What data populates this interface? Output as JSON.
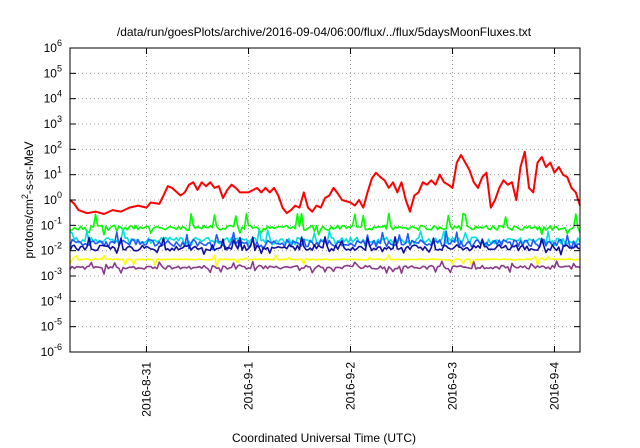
{
  "chart_data": {
    "type": "line",
    "title": "/data/run/goesPlots/archive/2016-09-04/06:00/flux/../flux/5daysMoonFluxes.txt",
    "xlabel": "Coordinated Universal Time (UTC)",
    "ylabel": {
      "prefix": "protons/cm",
      "superscript": "2",
      "suffix": "-s-sr-MeV"
    },
    "yscale": "log",
    "ylim_exp": [
      -6,
      6
    ],
    "y_tick_base": "10",
    "y_tick_exponents": [
      "-6",
      "-5",
      "-4",
      "-3",
      "-2",
      "-1",
      "0",
      "1",
      "2",
      "3",
      "4",
      "5",
      "6"
    ],
    "xlim": [
      "2016-08-30 06:00",
      "2016-09-04 06:00"
    ],
    "x_ticks": [
      {
        "t": "2016-08-31 00:00",
        "label": "2016-8-31"
      },
      {
        "t": "2016-09-01 00:00",
        "label": "2016-9-1"
      },
      {
        "t": "2016-09-02 00:00",
        "label": "2016-9-2"
      },
      {
        "t": "2016-09-03 00:00",
        "label": "2016-9-3"
      },
      {
        "t": "2016-09-04 00:00",
        "label": "2016-9-4"
      }
    ],
    "grid": true,
    "legend": "none",
    "series": [
      {
        "color": "#ff0000",
        "points": [
          [
            "2016-08-30 06:00",
            1.0
          ],
          [
            "2016-08-30 07:00",
            0.7
          ],
          [
            "2016-08-30 08:00",
            0.4
          ],
          [
            "2016-08-30 10:00",
            0.3
          ],
          [
            "2016-08-30 12:00",
            0.35
          ],
          [
            "2016-08-30 14:00",
            0.28
          ],
          [
            "2016-08-30 16:00",
            0.4
          ],
          [
            "2016-08-30 18:00",
            0.35
          ],
          [
            "2016-08-30 20:00",
            0.5
          ],
          [
            "2016-08-30 22:00",
            0.6
          ],
          [
            "2016-08-31 00:00",
            0.5
          ],
          [
            "2016-08-31 01:00",
            0.8
          ],
          [
            "2016-08-31 03:00",
            0.7
          ],
          [
            "2016-08-31 04:00",
            1.5
          ],
          [
            "2016-08-31 05:00",
            3.5
          ],
          [
            "2016-08-31 06:00",
            3.0
          ],
          [
            "2016-08-31 08:00",
            1.5
          ],
          [
            "2016-08-31 09:00",
            2.0
          ],
          [
            "2016-08-31 10:00",
            4.0
          ],
          [
            "2016-08-31 11:00",
            5.0
          ],
          [
            "2016-08-31 12:00",
            2.5
          ],
          [
            "2016-08-31 13:00",
            5.0
          ],
          [
            "2016-08-31 14:00",
            3.5
          ],
          [
            "2016-08-31 15:00",
            5.0
          ],
          [
            "2016-08-31 16:00",
            3.0
          ],
          [
            "2016-08-31 17:00",
            3.5
          ],
          [
            "2016-08-31 18:00",
            1.2
          ],
          [
            "2016-08-31 19:00",
            2.5
          ],
          [
            "2016-08-31 20:00",
            4.0
          ],
          [
            "2016-08-31 21:00",
            3.0
          ],
          [
            "2016-08-31 22:00",
            2.0
          ],
          [
            "2016-09-01 00:00",
            2.0
          ],
          [
            "2016-09-01 02:00",
            3.0
          ],
          [
            "2016-09-01 03:00",
            2.0
          ],
          [
            "2016-09-01 04:00",
            3.0
          ],
          [
            "2016-09-01 05:00",
            2.0
          ],
          [
            "2016-09-01 06:00",
            3.0
          ],
          [
            "2016-09-01 07:00",
            1.5
          ],
          [
            "2016-09-01 08:00",
            0.5
          ],
          [
            "2016-09-01 09:00",
            0.3
          ],
          [
            "2016-09-01 10:00",
            0.4
          ],
          [
            "2016-09-01 11:00",
            0.6
          ],
          [
            "2016-09-01 12:00",
            0.5
          ],
          [
            "2016-09-01 13:00",
            2.0
          ],
          [
            "2016-09-01 14:00",
            0.5
          ],
          [
            "2016-09-01 15:00",
            0.35
          ],
          [
            "2016-09-01 16:00",
            0.6
          ],
          [
            "2016-09-01 17:00",
            0.5
          ],
          [
            "2016-09-01 18:00",
            1.2
          ],
          [
            "2016-09-01 19:00",
            1.5
          ],
          [
            "2016-09-01 20:00",
            3.0
          ],
          [
            "2016-09-01 21:00",
            1.8
          ],
          [
            "2016-09-01 22:00",
            1.0
          ],
          [
            "2016-09-02 00:00",
            0.8
          ],
          [
            "2016-09-02 01:00",
            0.6
          ],
          [
            "2016-09-02 02:00",
            1.0
          ],
          [
            "2016-09-02 03:00",
            0.5
          ],
          [
            "2016-09-02 04:00",
            2.0
          ],
          [
            "2016-09-02 05:00",
            7.0
          ],
          [
            "2016-09-02 06:00",
            12.0
          ],
          [
            "2016-09-02 07:00",
            8.0
          ],
          [
            "2016-09-02 08:00",
            6.0
          ],
          [
            "2016-09-02 09:00",
            3.0
          ],
          [
            "2016-09-02 10:00",
            5.0
          ],
          [
            "2016-09-02 11:00",
            2.0
          ],
          [
            "2016-09-02 12:00",
            5.0
          ],
          [
            "2016-09-02 13:00",
            1.0
          ],
          [
            "2016-09-02 14:00",
            0.35
          ],
          [
            "2016-09-02 15:00",
            1.5
          ],
          [
            "2016-09-02 16:00",
            2.0
          ],
          [
            "2016-09-02 17:00",
            5.0
          ],
          [
            "2016-09-02 18:00",
            4.0
          ],
          [
            "2016-09-02 19:00",
            6.0
          ],
          [
            "2016-09-02 20:00",
            4.0
          ],
          [
            "2016-09-02 21:00",
            10.0
          ],
          [
            "2016-09-02 22:00",
            5.0
          ],
          [
            "2016-09-02 23:00",
            4.0
          ],
          [
            "2016-09-03 00:00",
            3.0
          ],
          [
            "2016-09-03 01:00",
            30.0
          ],
          [
            "2016-09-03 02:00",
            60.0
          ],
          [
            "2016-09-03 03:00",
            30.0
          ],
          [
            "2016-09-03 04:00",
            15.0
          ],
          [
            "2016-09-03 05:00",
            5.0
          ],
          [
            "2016-09-03 06:00",
            3.0
          ],
          [
            "2016-09-03 07:00",
            8.0
          ],
          [
            "2016-09-03 08:00",
            12.0
          ],
          [
            "2016-09-03 09:00",
            0.5
          ],
          [
            "2016-09-03 10:00",
            1.0
          ],
          [
            "2016-09-03 11:00",
            3.0
          ],
          [
            "2016-09-03 12:00",
            6.0
          ],
          [
            "2016-09-03 13:00",
            4.0
          ],
          [
            "2016-09-03 14:00",
            5.0
          ],
          [
            "2016-09-03 15:00",
            1.0
          ],
          [
            "2016-09-03 16:00",
            20.0
          ],
          [
            "2016-09-03 17:00",
            80.0
          ],
          [
            "2016-09-03 18:00",
            3.0
          ],
          [
            "2016-09-03 19:00",
            2.0
          ],
          [
            "2016-09-03 20:00",
            30.0
          ],
          [
            "2016-09-03 21:00",
            50.0
          ],
          [
            "2016-09-03 22:00",
            20.0
          ],
          [
            "2016-09-03 23:00",
            30.0
          ],
          [
            "2016-09-04 00:00",
            12.0
          ],
          [
            "2016-09-04 01:00",
            20.0
          ],
          [
            "2016-09-04 02:00",
            10.0
          ],
          [
            "2016-09-04 03:00",
            8.0
          ],
          [
            "2016-09-04 04:00",
            3.0
          ],
          [
            "2016-09-04 05:00",
            2.0
          ],
          [
            "2016-09-04 06:00",
            0.6
          ]
        ]
      },
      {
        "color": "#00ff00",
        "base": 0.08,
        "noise": 1.25,
        "spike": 0.25,
        "seed": 11
      },
      {
        "color": "#00e0e0",
        "base": 0.025,
        "noise": 1.35,
        "spike": 0.06,
        "seed": 23
      },
      {
        "color": "#1e5cff",
        "base": 0.02,
        "noise": 1.4,
        "spike": 0.05,
        "seed": 37
      },
      {
        "color": "#1010a0",
        "base": 0.013,
        "noise": 1.3,
        "spike": 0.03,
        "seed": 41
      },
      {
        "color": "#ffff00",
        "base": 0.0045,
        "noise": 1.05,
        "spike": 0.0055,
        "seed": 53
      },
      {
        "color": "#8b3a8b",
        "base": 0.0022,
        "noise": 1.18,
        "spike": 0.0033,
        "seed": 67
      }
    ]
  }
}
